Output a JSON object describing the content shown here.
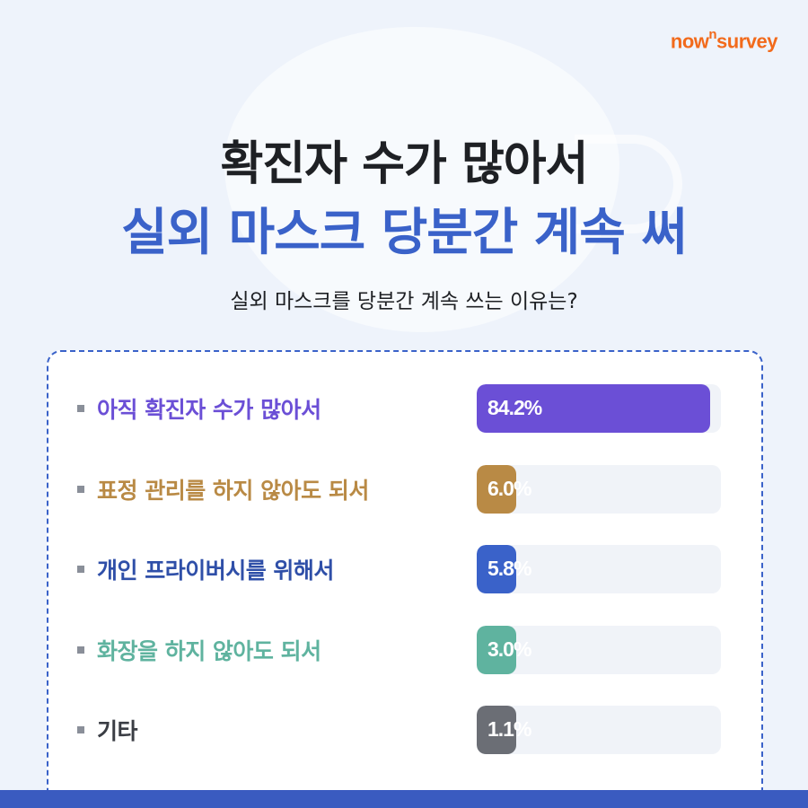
{
  "brand": {
    "logo_pre": "now",
    "logo_sup": "n",
    "logo_post": "survey"
  },
  "title_line1": "확진자 수가 많아서",
  "title_line2": "실외 마스크 당분간 계속 써",
  "question": "실외 마스크를 당분간 계속 쓰는 이유는?",
  "chart_data": {
    "type": "bar",
    "orientation": "horizontal",
    "categories": [
      "아직 확진자 수가 많아서",
      "표정 관리를 하지 않아도 되서",
      "개인 프라이버시를 위해서",
      "화장을 하지 않아도 되서",
      "기타"
    ],
    "values": [
      84.2,
      6.0,
      5.8,
      3.0,
      1.1
    ],
    "value_labels": [
      "84.2%",
      "6.0%",
      "5.8%",
      "3.0%",
      "1.1%"
    ],
    "colors": [
      "#6b4fd6",
      "#b98a45",
      "#3a62c9",
      "#5fb39f",
      "#6b6e75"
    ],
    "label_colors": [
      "#6b4fd6",
      "#b98a45",
      "#2f4fa8",
      "#5fb39f",
      "#3a3d44"
    ],
    "xlim": [
      0,
      88
    ],
    "unit": "%"
  }
}
